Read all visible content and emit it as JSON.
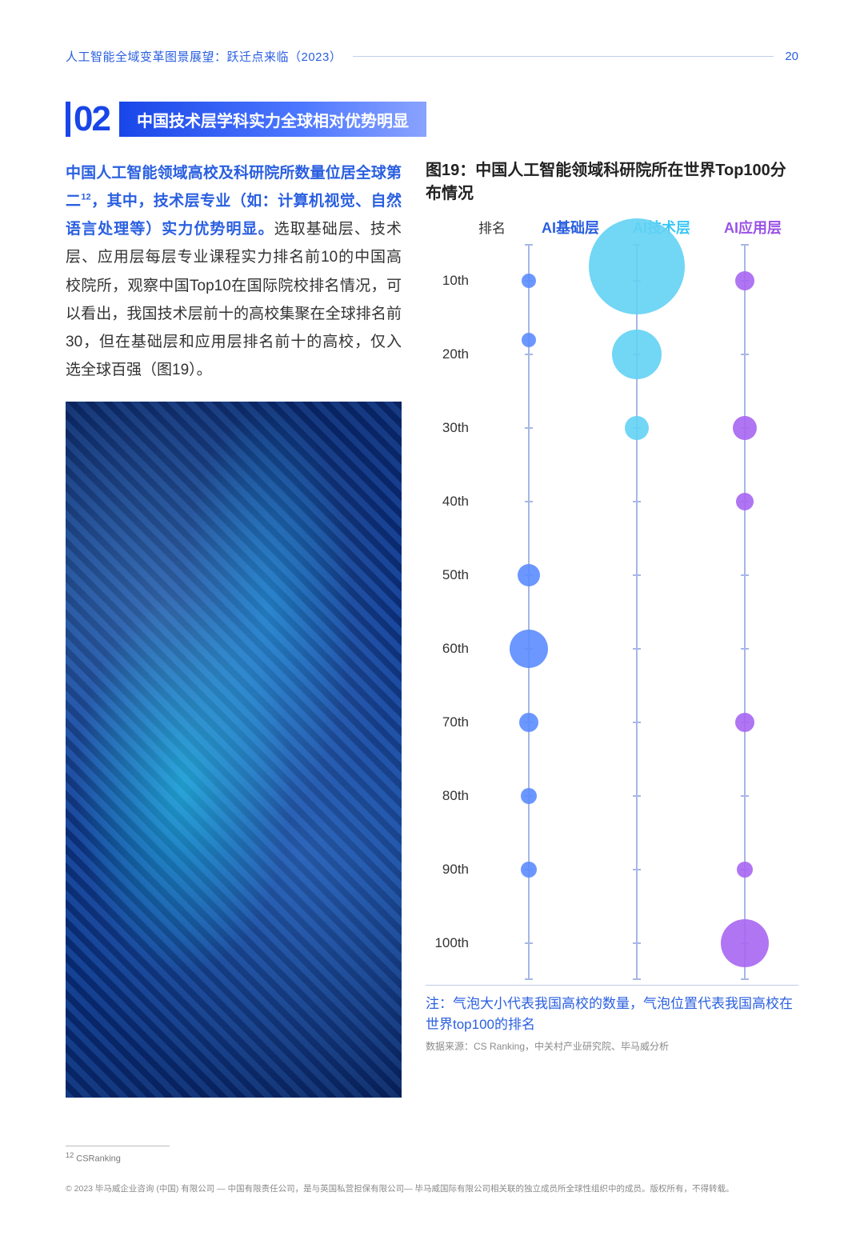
{
  "header": {
    "doc_title": "人工智能全域变革图景展望：跃迁点来临（2023）",
    "page_number": "20"
  },
  "section": {
    "number": "02",
    "title": "中国技术层学科实力全球相对优势明显"
  },
  "lead": {
    "highlight": "中国人工智能领域高校及科研院所数量位居全球第二",
    "sup": "12",
    "highlight2": "，其中，技术层专业（如：计算机视觉、自然语言处理等）实力优势明显。",
    "rest": "选取基础层、技术层、应用层每层专业课程实力排名前10的中国高校院所，观察中国Top10在国际院校排名情况，可以看出，我国技术层前十的高校集聚在全球排名前30，但在基础层和应用层排名前十的高校，仅入选全球百强（图19）。"
  },
  "figure": {
    "title": "图19：中国人工智能领域科研院所在世界Top100分布情况",
    "yaxis_label": "排名",
    "columns": [
      "AI基础层",
      "AI技术层",
      "AI应用层"
    ],
    "column_colors": [
      "#2a5fe0",
      "#3bc7f5",
      "#9a52e6"
    ],
    "lane_color": "#a7b7e6",
    "y_ticks": [
      "10th",
      "20th",
      "30th",
      "40th",
      "50th",
      "60th",
      "70th",
      "80th",
      "90th",
      "100th"
    ],
    "y_range": [
      5,
      105
    ],
    "bubbles": {
      "col1": [
        {
          "rank": 10,
          "size": 18
        },
        {
          "rank": 18,
          "size": 18
        },
        {
          "rank": 50,
          "size": 28
        },
        {
          "rank": 60,
          "size": 48
        },
        {
          "rank": 70,
          "size": 24
        },
        {
          "rank": 80,
          "size": 20
        },
        {
          "rank": 90,
          "size": 20
        }
      ],
      "col2": [
        {
          "rank": 8,
          "size": 120
        },
        {
          "rank": 20,
          "size": 62
        },
        {
          "rank": 30,
          "size": 30
        }
      ],
      "col3": [
        {
          "rank": 10,
          "size": 24
        },
        {
          "rank": 30,
          "size": 30
        },
        {
          "rank": 40,
          "size": 22
        },
        {
          "rank": 70,
          "size": 24
        },
        {
          "rank": 90,
          "size": 20
        },
        {
          "rank": 100,
          "size": 60
        }
      ]
    },
    "bubble_fill": {
      "col1": "#5b8cff",
      "col2": "#63d2f4",
      "col3": "#a766f2"
    },
    "note": "注：气泡大小代表我国高校的数量，气泡位置代表我国高校在世界top100的排名",
    "source": "数据来源：CS Ranking，中关村产业研究院、毕马威分析"
  },
  "footnote": {
    "num": "12",
    "text": "CSRanking"
  },
  "copyright": "© 2023 毕马威企业咨询 (中国) 有限公司 — 中国有限责任公司，是与英国私营担保有限公司— 毕马威国际有限公司相关联的独立成员所全球性组织中的成员。版权所有，不得转载。"
}
